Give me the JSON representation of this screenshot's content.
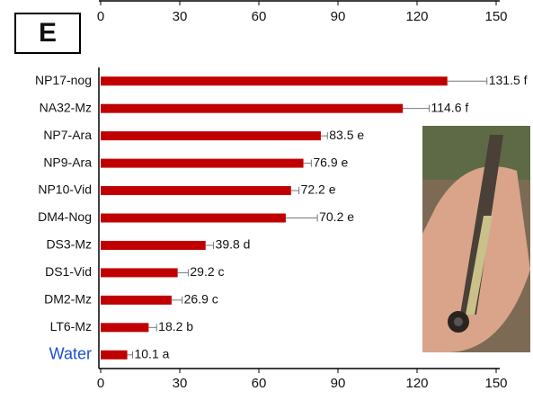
{
  "chart_data": {
    "type": "bar",
    "orientation": "horizontal",
    "panel_label": "E",
    "categories": [
      "NP17-nog",
      "NA32-Mz",
      "NP7-Ara",
      "NP9-Ara",
      "NP10-Vid",
      "DM4-Nog",
      "DS3-Mz",
      "DS1-Vid",
      "DM2-Mz",
      "LT6-Mz",
      "Water"
    ],
    "values": [
      131.5,
      114.6,
      83.5,
      76.9,
      72.2,
      70.2,
      39.8,
      29.2,
      26.9,
      18.2,
      10.1
    ],
    "errors": [
      15,
      10,
      2.5,
      3,
      3,
      12,
      3,
      4,
      4,
      3,
      2
    ],
    "value_labels": [
      "131.5 f",
      "114.6 f",
      "83.5 e",
      "76.9 e",
      "72.2 e",
      "70.2 e",
      "39.8 d",
      "29.2 c",
      "26.9 c",
      "18.2 b",
      "10.1 a"
    ],
    "color": "#c00000",
    "error_color": "#777777",
    "xlim": [
      0,
      150
    ],
    "xticks": [
      0,
      30,
      60,
      90,
      120,
      150
    ]
  }
}
